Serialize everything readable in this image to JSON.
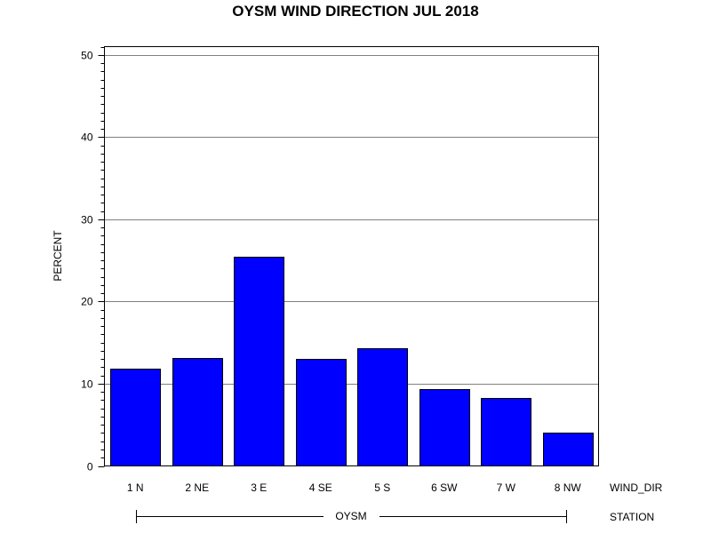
{
  "chart_data": {
    "type": "bar",
    "title": "OYSM WIND DIRECTION JUL 2018",
    "ylabel": "PERCENT",
    "xlabel": "WIND_DIR",
    "group_label": "STATION",
    "group_name": "OYSM",
    "categories": [
      "1 N",
      "2 NE",
      "3 E",
      "4 SE",
      "5 S",
      "6 SW",
      "7 W",
      "8 NW"
    ],
    "values": [
      11.8,
      13.1,
      25.5,
      13.0,
      14.3,
      9.3,
      8.3,
      4.0
    ],
    "ylim": [
      0,
      51
    ],
    "yticks": [
      0,
      10,
      20,
      30,
      40,
      50
    ],
    "grid": true,
    "bar_color": "#0000ff"
  }
}
